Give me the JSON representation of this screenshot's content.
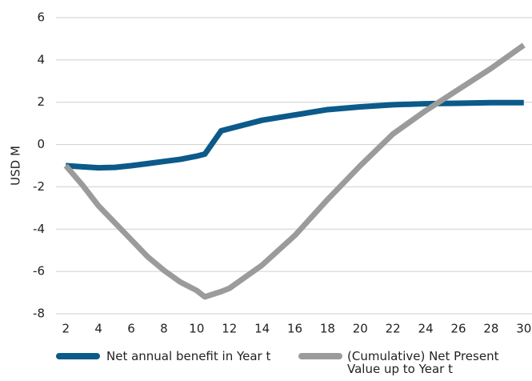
{
  "chart_data": {
    "type": "line",
    "y_label": "USD M",
    "x": [
      2,
      3,
      4,
      5,
      6,
      7,
      8,
      9,
      10,
      10.5,
      11.5,
      12,
      14,
      16,
      18,
      20,
      22,
      24,
      26,
      28,
      30
    ],
    "series": [
      {
        "name": "Net annual benefit in Year t",
        "color": "#0b5a8a",
        "values": [
          -1,
          -1.05,
          -1.1,
          -1.08,
          -1.0,
          -0.9,
          -0.8,
          -0.7,
          -0.55,
          -0.45,
          0.65,
          0.75,
          1.15,
          1.4,
          1.65,
          1.78,
          1.88,
          1.93,
          1.95,
          1.98,
          1.98
        ]
      },
      {
        "name": "(Cumulative) Net Present Value up to Year t",
        "color": "#9b9b9b",
        "values": [
          -1,
          -1.9,
          -2.9,
          -3.7,
          -4.5,
          -5.3,
          -5.95,
          -6.5,
          -6.9,
          -7.2,
          -6.95,
          -6.8,
          -5.7,
          -4.3,
          -2.6,
          -1.0,
          0.5,
          1.6,
          2.6,
          3.6,
          4.7
        ]
      }
    ],
    "xlim": [
      1.4,
      30.5
    ],
    "xticks": [
      2,
      4,
      6,
      8,
      10,
      12,
      14,
      16,
      18,
      20,
      22,
      24,
      26,
      28,
      30
    ],
    "ylim": [
      -8,
      6
    ],
    "yticks": [
      6,
      4,
      2,
      0,
      -2,
      -4,
      -6,
      -8
    ],
    "grid": true,
    "legend": "bottom"
  }
}
